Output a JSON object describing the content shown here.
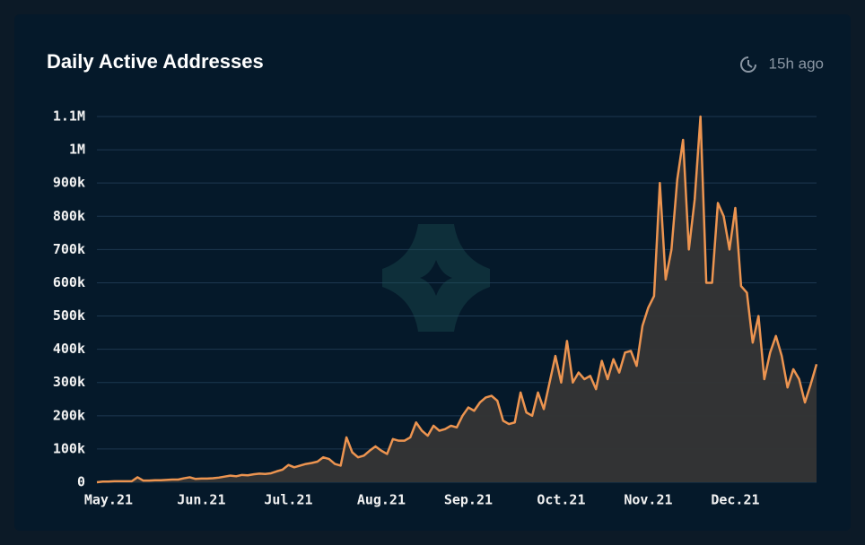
{
  "header": {
    "updated": "15h ago"
  },
  "chart_data": {
    "type": "line",
    "title": "Daily Active Addresses",
    "categories": [
      null,
      null,
      "May.21",
      null,
      null,
      null,
      null,
      null,
      null,
      null,
      null,
      null,
      null,
      null,
      null,
      null,
      null,
      null,
      "Jun.21",
      null,
      null,
      null,
      null,
      null,
      null,
      null,
      null,
      null,
      null,
      null,
      null,
      null,
      null,
      "Jul.21",
      null,
      null,
      null,
      null,
      null,
      null,
      null,
      null,
      null,
      null,
      null,
      null,
      null,
      null,
      null,
      "Aug.21",
      null,
      null,
      null,
      null,
      null,
      null,
      null,
      null,
      null,
      null,
      null,
      null,
      null,
      null,
      "Sep.21",
      null,
      null,
      null,
      null,
      null,
      null,
      null,
      null,
      null,
      null,
      null,
      null,
      null,
      null,
      null,
      "Oct.21",
      null,
      null,
      null,
      null,
      null,
      null,
      null,
      null,
      null,
      null,
      null,
      null,
      null,
      null,
      "Nov.21",
      null,
      null,
      null,
      null,
      null,
      null,
      null,
      null,
      null,
      null,
      null,
      null,
      null,
      null,
      "Dec.21",
      null,
      null,
      null,
      null,
      null,
      null,
      null,
      null,
      null,
      null,
      null,
      null,
      null,
      null
    ],
    "series": [
      {
        "name": "Daily Active Addresses",
        "color": "#ec9450",
        "area_color": "#353535",
        "values": [
          0,
          2000,
          2000,
          3000,
          3000,
          3000,
          3000,
          15000,
          5000,
          5000,
          6000,
          6000,
          7000,
          8000,
          8000,
          12000,
          15000,
          10000,
          11000,
          11000,
          12000,
          14000,
          17000,
          20000,
          18000,
          22000,
          21000,
          24000,
          26000,
          25000,
          27000,
          33000,
          38000,
          52000,
          45000,
          50000,
          55000,
          58000,
          62000,
          75000,
          70000,
          55000,
          50000,
          135000,
          90000,
          75000,
          80000,
          95000,
          108000,
          95000,
          85000,
          130000,
          125000,
          125000,
          135000,
          180000,
          155000,
          140000,
          170000,
          155000,
          160000,
          170000,
          165000,
          200000,
          225000,
          215000,
          240000,
          255000,
          260000,
          245000,
          185000,
          175000,
          180000,
          270000,
          210000,
          200000,
          270000,
          220000,
          300000,
          380000,
          300000,
          425000,
          300000,
          330000,
          310000,
          320000,
          280000,
          365000,
          310000,
          370000,
          330000,
          390000,
          395000,
          350000,
          470000,
          525000,
          560000,
          900000,
          610000,
          700000,
          910000,
          1030000,
          700000,
          850000,
          1100000,
          600000,
          600000,
          840000,
          800000,
          700000,
          825000,
          590000,
          570000,
          420000,
          500000,
          310000,
          390000,
          440000,
          380000,
          285000,
          340000,
          310000,
          240000,
          295000,
          355000
        ]
      }
    ],
    "ylim": [
      0,
      1100000
    ],
    "yticks": [
      0,
      {
        "value": 100000,
        "label": "100k"
      },
      {
        "value": 200000,
        "label": "200k"
      },
      {
        "value": 300000,
        "label": "300k"
      },
      {
        "value": 400000,
        "label": "400k"
      },
      {
        "value": 500000,
        "label": "500k"
      },
      {
        "value": 600000,
        "label": "600k"
      },
      {
        "value": 700000,
        "label": "700k"
      },
      {
        "value": 800000,
        "label": "800k"
      },
      {
        "value": 900000,
        "label": "900k"
      },
      {
        "value": 1000000,
        "label": "1M"
      },
      {
        "value": 1100000,
        "label": "1.1M"
      }
    ],
    "grid": true,
    "grid_color": "#1d3850"
  }
}
